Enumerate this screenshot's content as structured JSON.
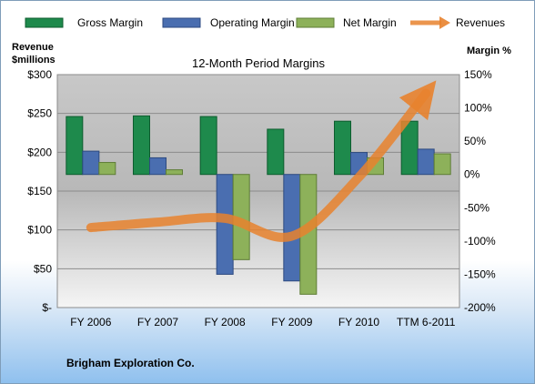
{
  "chart_data": {
    "type": "bar",
    "title": "12-Month Period Margins",
    "categories": [
      "FY 2006",
      "FY 2007",
      "FY 2008",
      "FY 2009",
      "FY 2010",
      "TTM 6-2011"
    ],
    "series": [
      {
        "name": "Gross Margin",
        "kind": "bar",
        "axis": "right",
        "color": "#1e8a4c",
        "values": [
          87,
          88,
          87,
          68,
          80,
          80
        ]
      },
      {
        "name": "Operating Margin",
        "kind": "bar",
        "axis": "right",
        "color": "#4a6eb0",
        "values": [
          35,
          25,
          -150,
          -160,
          33,
          38
        ]
      },
      {
        "name": "Net Margin",
        "kind": "bar",
        "axis": "right",
        "color": "#8db15a",
        "values": [
          18,
          7,
          -128,
          -180,
          25,
          31
        ]
      },
      {
        "name": "Revenues",
        "kind": "line",
        "axis": "left",
        "color": "#e8822e",
        "values": [
          103,
          110,
          115,
          92,
          168,
          276
        ]
      }
    ],
    "left_axis": {
      "label_line1": "Revenue",
      "label_line2": "$millions",
      "min": 0,
      "max": 300,
      "ticks": [
        "$-",
        "$50",
        "$100",
        "$150",
        "$200",
        "$250",
        "$300"
      ]
    },
    "right_axis": {
      "label": "Margin %",
      "min": -200,
      "max": 150,
      "ticks": [
        "-200%",
        "-150%",
        "-100%",
        "-50%",
        "0%",
        "50%",
        "100%",
        "150%"
      ]
    },
    "legend_position": "top",
    "grid": true
  },
  "footer": {
    "company": "Brigham Exploration Co."
  }
}
